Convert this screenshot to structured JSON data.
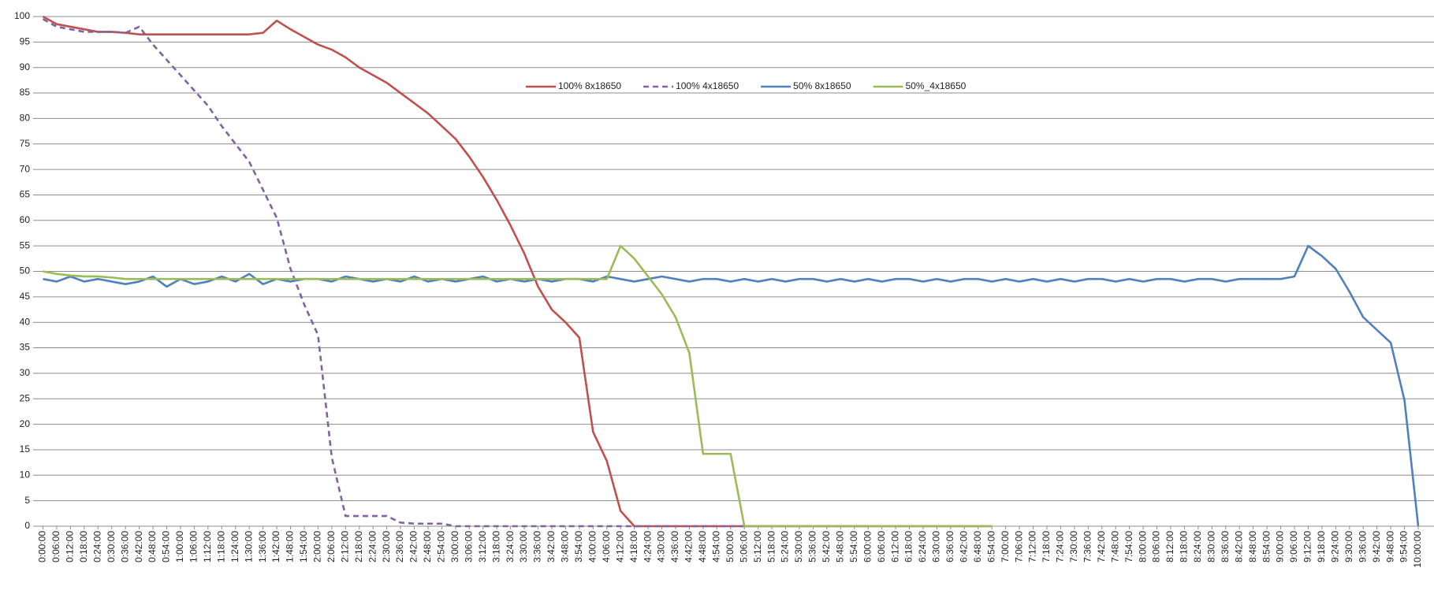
{
  "chart_data": {
    "type": "line",
    "categories": [
      "0:00:00",
      "0:06:00",
      "0:12:00",
      "0:18:00",
      "0:24:00",
      "0:30:00",
      "0:36:00",
      "0:42:00",
      "0:48:00",
      "0:54:00",
      "1:00:00",
      "1:06:00",
      "1:12:00",
      "1:18:00",
      "1:24:00",
      "1:30:00",
      "1:36:00",
      "1:42:00",
      "1:48:00",
      "1:54:00",
      "2:00:00",
      "2:06:00",
      "2:12:00",
      "2:18:00",
      "2:24:00",
      "2:30:00",
      "2:36:00",
      "2:42:00",
      "2:48:00",
      "2:54:00",
      "3:00:00",
      "3:06:00",
      "3:12:00",
      "3:18:00",
      "3:24:00",
      "3:30:00",
      "3:36:00",
      "3:42:00",
      "3:48:00",
      "3:54:00",
      "4:00:00",
      "4:06:00",
      "4:12:00",
      "4:18:00",
      "4:24:00",
      "4:30:00",
      "4:36:00",
      "4:42:00",
      "4:48:00",
      "4:54:00",
      "5:00:00",
      "5:06:00",
      "5:12:00",
      "5:18:00",
      "5:24:00",
      "5:30:00",
      "5:36:00",
      "5:42:00",
      "5:48:00",
      "5:54:00",
      "6:00:00",
      "6:06:00",
      "6:12:00",
      "6:18:00",
      "6:24:00",
      "6:30:00",
      "6:36:00",
      "6:42:00",
      "6:48:00",
      "6:54:00",
      "7:00:00",
      "7:06:00",
      "7:12:00",
      "7:18:00",
      "7:24:00",
      "7:30:00",
      "7:36:00",
      "7:42:00",
      "7:48:00",
      "7:54:00",
      "8:00:00",
      "8:06:00",
      "8:12:00",
      "8:18:00",
      "8:24:00",
      "8:30:00",
      "8:36:00",
      "8:42:00",
      "8:48:00",
      "8:54:00",
      "9:00:00",
      "9:06:00",
      "9:12:00",
      "9:18:00",
      "9:24:00",
      "9:30:00",
      "9:36:00",
      "9:42:00",
      "9:48:00",
      "9:54:00",
      "10:00:00"
    ],
    "series": [
      {
        "name": "100% 8x18650",
        "color": "#c0504d",
        "line_style": "solid",
        "values": [
          100,
          98.5,
          98,
          97.5,
          97,
          97,
          96.8,
          96.5,
          96.5,
          96.5,
          96.5,
          96.5,
          96.5,
          96.5,
          96.5,
          96.5,
          96.8,
          99.2,
          97.5,
          96,
          94.5,
          93.5,
          92,
          90,
          88.5,
          87,
          85,
          83,
          81,
          78.5,
          76,
          72.5,
          68.5,
          64,
          59,
          53.5,
          47,
          42.5,
          40,
          37,
          18.5,
          12.8,
          3,
          0,
          0,
          0,
          0,
          0,
          0,
          0,
          0,
          0,
          0,
          0,
          0,
          0,
          0,
          0,
          0,
          0,
          0,
          0,
          0,
          0,
          0,
          0,
          0,
          0,
          0,
          0,
          null,
          null,
          null,
          null,
          null,
          null,
          null,
          null,
          null,
          null,
          null,
          null,
          null,
          null,
          null,
          null,
          null,
          null,
          null,
          null,
          null,
          null,
          null,
          null,
          null,
          null,
          null,
          null,
          null,
          null,
          null
        ]
      },
      {
        "name": "100% 4x18650",
        "color": "#8064a2",
        "line_style": "dashed",
        "values": [
          99.5,
          98,
          97.5,
          97,
          97,
          97,
          96.8,
          98,
          94.5,
          91.5,
          88.5,
          85.5,
          82.5,
          78.5,
          75,
          71.5,
          66,
          60.5,
          50.5,
          43.5,
          37.5,
          13.5,
          2,
          2,
          2,
          2,
          0.7,
          0.5,
          0.5,
          0.5,
          0,
          0,
          0,
          0,
          0,
          0,
          0,
          0,
          0,
          0,
          0,
          0,
          0,
          0,
          0,
          0,
          0,
          0,
          0,
          0,
          0,
          0,
          0,
          0,
          0,
          0,
          0,
          0,
          0,
          0,
          0,
          null,
          null,
          null,
          null,
          null,
          null,
          null,
          null,
          null,
          null,
          null,
          null,
          null,
          null,
          null,
          null,
          null,
          null,
          null,
          null,
          null,
          null,
          null,
          null,
          null,
          null,
          null,
          null,
          null,
          null,
          null,
          null,
          null,
          null,
          null,
          null,
          null,
          null,
          null,
          null
        ]
      },
      {
        "name": "50% 8x18650",
        "color": "#4f81bd",
        "line_style": "solid",
        "values": [
          48.5,
          48,
          49,
          48,
          48.5,
          48,
          47.5,
          48,
          49,
          47,
          48.5,
          47.5,
          48,
          49,
          48,
          49.5,
          47.5,
          48.5,
          48,
          48.5,
          48.5,
          48,
          49,
          48.5,
          48,
          48.5,
          48,
          49,
          48,
          48.5,
          48,
          48.5,
          49,
          48,
          48.5,
          48,
          48.5,
          48,
          48.5,
          48.5,
          48,
          49,
          48.5,
          48,
          48.5,
          49,
          48.5,
          48,
          48.5,
          48.5,
          48,
          48.5,
          48,
          48.5,
          48,
          48.5,
          48.5,
          48,
          48.5,
          48,
          48.5,
          48,
          48.5,
          48.5,
          48,
          48.5,
          48,
          48.5,
          48.5,
          48,
          48.5,
          48,
          48.5,
          48,
          48.5,
          48,
          48.5,
          48.5,
          48,
          48.5,
          48,
          48.5,
          48.5,
          48,
          48.5,
          48.5,
          48,
          48.5,
          48.5,
          48.5,
          48.5,
          49,
          55,
          53,
          50.5,
          46,
          41,
          38.5,
          36,
          24.7,
          0
        ]
      },
      {
        "name": "50%_4x18650",
        "color": "#9bbb59",
        "line_style": "solid",
        "values": [
          50,
          49.5,
          49.2,
          49,
          49,
          48.8,
          48.5,
          48.5,
          48.5,
          48.5,
          48.5,
          48.5,
          48.5,
          48.5,
          48.5,
          48.5,
          48.5,
          48.5,
          48.5,
          48.5,
          48.5,
          48.5,
          48.5,
          48.5,
          48.5,
          48.5,
          48.5,
          48.5,
          48.5,
          48.5,
          48.5,
          48.5,
          48.5,
          48.5,
          48.5,
          48.5,
          48.5,
          48.5,
          48.5,
          48.5,
          48.5,
          48.5,
          55,
          52.5,
          49,
          45.5,
          41,
          34,
          14.2,
          14.2,
          14.2,
          0,
          0,
          0,
          0,
          0,
          0,
          0,
          0,
          0,
          0,
          0,
          0,
          0,
          0,
          0,
          0,
          0,
          0,
          0,
          null,
          null,
          null,
          null,
          null,
          null,
          null,
          null,
          null,
          null,
          null,
          null,
          null,
          null,
          null,
          null,
          null,
          null,
          null,
          null,
          null,
          null,
          null,
          null,
          null,
          null,
          null,
          null,
          null,
          null,
          null
        ]
      }
    ],
    "ylim": [
      0,
      100
    ],
    "yticks": [
      0,
      5,
      10,
      15,
      20,
      25,
      30,
      35,
      40,
      45,
      50,
      55,
      60,
      65,
      70,
      75,
      80,
      85,
      90,
      95,
      100
    ],
    "grid": true,
    "legend": "top"
  }
}
